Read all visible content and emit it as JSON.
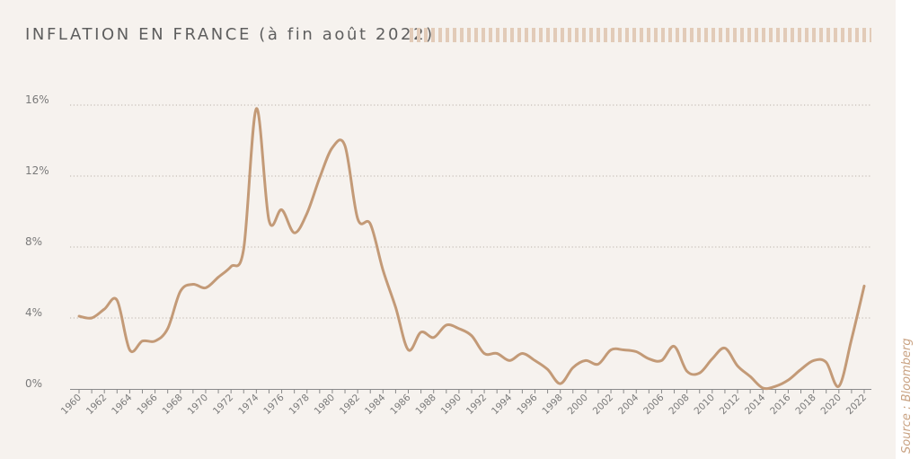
{
  "title": "INFLATION EN FRANCE (à fin août 2022)",
  "source": "Source : Bloomberg",
  "colors": {
    "line": "#c39a77",
    "background": "#f6f2ee",
    "grid": "#b9b2ab",
    "text": "#6a6a6a"
  },
  "chart_data": {
    "type": "line",
    "title": "INFLATION EN FRANCE (à fin août 2022)",
    "xlabel": "",
    "ylabel": "",
    "ylim": [
      0,
      16
    ],
    "yticks": [
      0,
      4,
      8,
      12,
      16
    ],
    "ytick_labels": [
      "0%",
      "4%",
      "8%",
      "12%",
      "16%"
    ],
    "xticks": [
      1960,
      1962,
      1964,
      1966,
      1968,
      1970,
      1972,
      1974,
      1976,
      1978,
      1980,
      1982,
      1984,
      1986,
      1988,
      1990,
      1992,
      1994,
      1996,
      1998,
      2000,
      2002,
      2004,
      2006,
      2008,
      2010,
      2012,
      2014,
      2016,
      2018,
      2020,
      2022
    ],
    "grid": "horizontal dotted",
    "x": [
      1960,
      1961,
      1962,
      1963,
      1964,
      1965,
      1966,
      1967,
      1968,
      1969,
      1970,
      1971,
      1972,
      1973,
      1974,
      1975,
      1976,
      1977,
      1978,
      1979,
      1980,
      1981,
      1982,
      1983,
      1984,
      1985,
      1986,
      1987,
      1988,
      1989,
      1990,
      1991,
      1992,
      1993,
      1994,
      1995,
      1996,
      1997,
      1998,
      1999,
      2000,
      2001,
      2002,
      2003,
      2004,
      2005,
      2006,
      2007,
      2008,
      2009,
      2010,
      2011,
      2012,
      2013,
      2014,
      2015,
      2016,
      2017,
      2018,
      2019,
      2020,
      2021,
      2022
    ],
    "values": [
      4.1,
      4.0,
      4.5,
      5.0,
      2.2,
      2.7,
      2.7,
      3.4,
      5.5,
      5.9,
      5.7,
      6.3,
      6.9,
      7.9,
      15.8,
      9.5,
      10.1,
      8.8,
      9.9,
      11.9,
      13.6,
      13.7,
      9.6,
      9.3,
      6.7,
      4.6,
      2.2,
      3.2,
      2.9,
      3.6,
      3.4,
      3.0,
      2.0,
      2.0,
      1.6,
      2.0,
      1.6,
      1.1,
      0.3,
      1.2,
      1.6,
      1.4,
      2.2,
      2.2,
      2.1,
      1.7,
      1.6,
      2.4,
      1.0,
      0.9,
      1.7,
      2.3,
      1.3,
      0.7,
      0.05,
      0.15,
      0.5,
      1.1,
      1.6,
      1.5,
      0.15,
      2.8,
      5.8
    ]
  }
}
